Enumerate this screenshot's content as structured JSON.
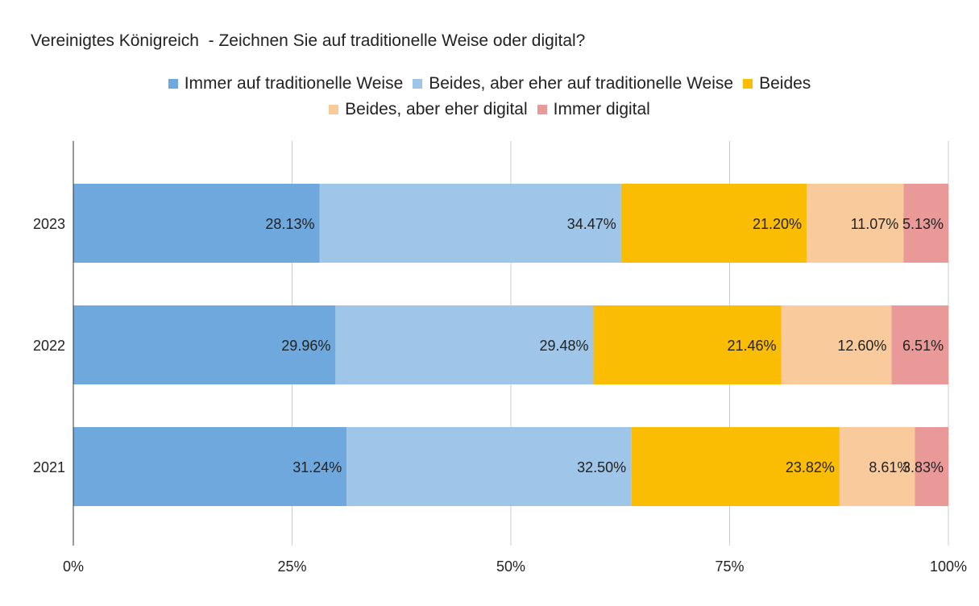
{
  "chart_data": {
    "type": "bar",
    "orientation": "horizontal",
    "stacked": true,
    "normalized": true,
    "title": "Vereinigtes Königreich  - Zeichnen Sie auf traditionelle Weise oder digital?",
    "categories": [
      "2023",
      "2022",
      "2021"
    ],
    "series": [
      {
        "name": "Immer auf traditionelle Weise",
        "color": "#6fa8dc",
        "values": [
          28.13,
          29.96,
          31.24
        ],
        "labels": [
          "28.13%",
          "29.96%",
          "31.24%"
        ]
      },
      {
        "name": "Beides, aber eher auf traditionelle Weise",
        "color": "#9fc5e8",
        "values": [
          34.47,
          29.48,
          32.5
        ],
        "labels": [
          "34.47%",
          "29.48%",
          "32.50%"
        ]
      },
      {
        "name": "Beides",
        "color": "#fbbc04",
        "values": [
          21.2,
          21.46,
          23.82
        ],
        "labels": [
          "21.20%",
          "21.46%",
          "23.82%"
        ]
      },
      {
        "name": "Beides, aber eher digital",
        "color": "#f9cb9c",
        "values": [
          11.07,
          12.6,
          8.61
        ],
        "labels": [
          "11.07%",
          "12.60%",
          "8.61%"
        ]
      },
      {
        "name": "Immer digital",
        "color": "#ea9999",
        "values": [
          5.13,
          6.51,
          3.83
        ],
        "labels": [
          "5.13%",
          "6.51%",
          "3.83%"
        ]
      }
    ],
    "x_ticks": [
      "0%",
      "25%",
      "50%",
      "75%",
      "100%"
    ],
    "xlim": [
      0,
      100
    ],
    "xlabel": "",
    "ylabel": "",
    "grid": true,
    "legend_position": "top"
  }
}
